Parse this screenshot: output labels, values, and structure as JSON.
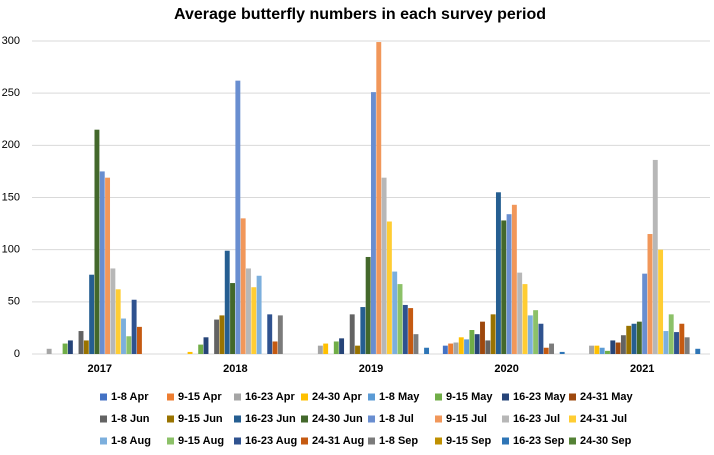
{
  "chart_data": {
    "type": "bar",
    "title": "Average butterfly numbers in each survey period",
    "categories": [
      "2017",
      "2018",
      "2019",
      "2020",
      "2021"
    ],
    "ylim": [
      0,
      300
    ],
    "yticks": [
      0,
      50,
      100,
      150,
      200,
      250,
      300
    ],
    "grid": true,
    "series": [
      {
        "name": "1-8 Apr",
        "color": "#4472C4",
        "values": [
          0,
          0,
          0,
          8,
          0
        ]
      },
      {
        "name": "9-15 Apr",
        "color": "#ED7D31",
        "values": [
          0,
          0,
          0,
          10,
          0
        ]
      },
      {
        "name": "16-23 Apr",
        "color": "#A5A5A5",
        "values": [
          5,
          0,
          8,
          11,
          8
        ]
      },
      {
        "name": "24-30 Apr",
        "color": "#FFC000",
        "values": [
          0,
          2,
          10,
          16,
          8
        ]
      },
      {
        "name": "1-8 May",
        "color": "#5B9BD5",
        "values": [
          0,
          0,
          0,
          14,
          6
        ]
      },
      {
        "name": "9-15 May",
        "color": "#70AD47",
        "values": [
          10,
          9,
          12,
          23,
          3
        ]
      },
      {
        "name": "16-23 May",
        "color": "#264478",
        "values": [
          13,
          16,
          15,
          19,
          13
        ]
      },
      {
        "name": "24-31 May",
        "color": "#9E480E",
        "values": [
          0,
          0,
          0,
          31,
          11
        ]
      },
      {
        "name": "1-8 Jun",
        "color": "#636363",
        "values": [
          22,
          33,
          38,
          13,
          18
        ]
      },
      {
        "name": "9-15 Jun",
        "color": "#997300",
        "values": [
          13,
          37,
          8,
          38,
          27
        ]
      },
      {
        "name": "16-23 Jun",
        "color": "#255E91",
        "values": [
          76,
          99,
          45,
          155,
          29
        ]
      },
      {
        "name": "24-30 Jun",
        "color": "#43682B",
        "values": [
          215,
          68,
          93,
          128,
          31
        ]
      },
      {
        "name": "1-8 Jul",
        "color": "#698ED0",
        "values": [
          175,
          262,
          251,
          134,
          77
        ]
      },
      {
        "name": "9-15 Jul",
        "color": "#F1975A",
        "values": [
          169,
          130,
          299,
          143,
          115
        ]
      },
      {
        "name": "16-23 Jul",
        "color": "#B7B7B7",
        "values": [
          82,
          82,
          169,
          78,
          186
        ]
      },
      {
        "name": "24-31 Jul",
        "color": "#FFCD33",
        "values": [
          62,
          64,
          127,
          67,
          100
        ]
      },
      {
        "name": "1-8 Aug",
        "color": "#7CAFDD",
        "values": [
          34,
          75,
          79,
          37,
          22
        ]
      },
      {
        "name": "9-15 Aug",
        "color": "#8CC168",
        "values": [
          17,
          0,
          67,
          42,
          38
        ]
      },
      {
        "name": "16-23 Aug",
        "color": "#2F528F",
        "values": [
          52,
          38,
          47,
          29,
          21
        ]
      },
      {
        "name": "24-31 Aug",
        "color": "#C55A11",
        "values": [
          26,
          12,
          44,
          6,
          29
        ]
      },
      {
        "name": "1-8 Sep",
        "color": "#7B7B7B",
        "values": [
          0,
          37,
          19,
          10,
          16
        ]
      },
      {
        "name": "9-15 Sep",
        "color": "#BF9000",
        "values": [
          0,
          0,
          0,
          0,
          0
        ]
      },
      {
        "name": "16-23 Sep",
        "color": "#2E75B6",
        "values": [
          0,
          0,
          6,
          2,
          5
        ]
      },
      {
        "name": "24-30 Sep",
        "color": "#548235",
        "values": [
          0,
          0,
          0,
          0,
          0
        ]
      }
    ]
  }
}
